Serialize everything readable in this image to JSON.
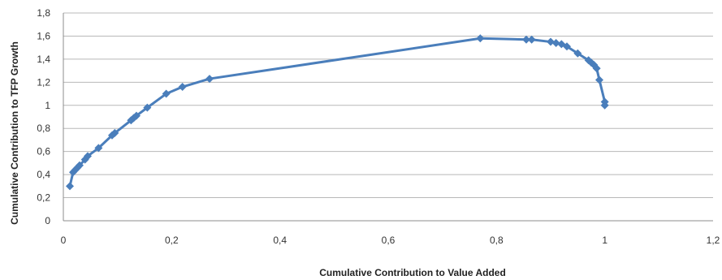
{
  "chart_data": {
    "type": "scatter",
    "title": "",
    "xlabel": "Cumulative Contribution to Value Added",
    "ylabel": "Cumulative Contribution to TFP Growth",
    "xlim": [
      0,
      1.2
    ],
    "ylim": [
      0,
      1.8
    ],
    "x_ticks": [
      "0",
      "0,2",
      "0,4",
      "0,6",
      "0,8",
      "1",
      "1,2"
    ],
    "y_ticks": [
      "0",
      "0,2",
      "0,4",
      "0,6",
      "0,8",
      "1",
      "1,2",
      "1,4",
      "1,6",
      "1,8"
    ],
    "grid": "horizontal",
    "legend": "none",
    "line_color": "#4a7ebb",
    "series": [
      {
        "x": [
          0.012,
          0.018,
          0.022,
          0.026,
          0.03,
          0.04,
          0.045,
          0.065,
          0.09,
          0.095,
          0.125,
          0.13,
          0.135,
          0.155,
          0.19,
          0.22,
          0.27,
          0.77,
          0.855,
          0.865,
          0.9,
          0.91,
          0.92,
          0.93,
          0.95,
          0.97,
          0.975,
          0.98,
          0.985,
          0.99,
          1.0,
          1.0
        ],
        "y": [
          0.3,
          0.42,
          0.44,
          0.46,
          0.48,
          0.53,
          0.56,
          0.63,
          0.74,
          0.76,
          0.87,
          0.89,
          0.91,
          0.98,
          1.1,
          1.16,
          1.23,
          1.58,
          1.57,
          1.57,
          1.55,
          1.54,
          1.53,
          1.51,
          1.45,
          1.39,
          1.37,
          1.35,
          1.32,
          1.22,
          1.03,
          1.0
        ]
      }
    ]
  }
}
